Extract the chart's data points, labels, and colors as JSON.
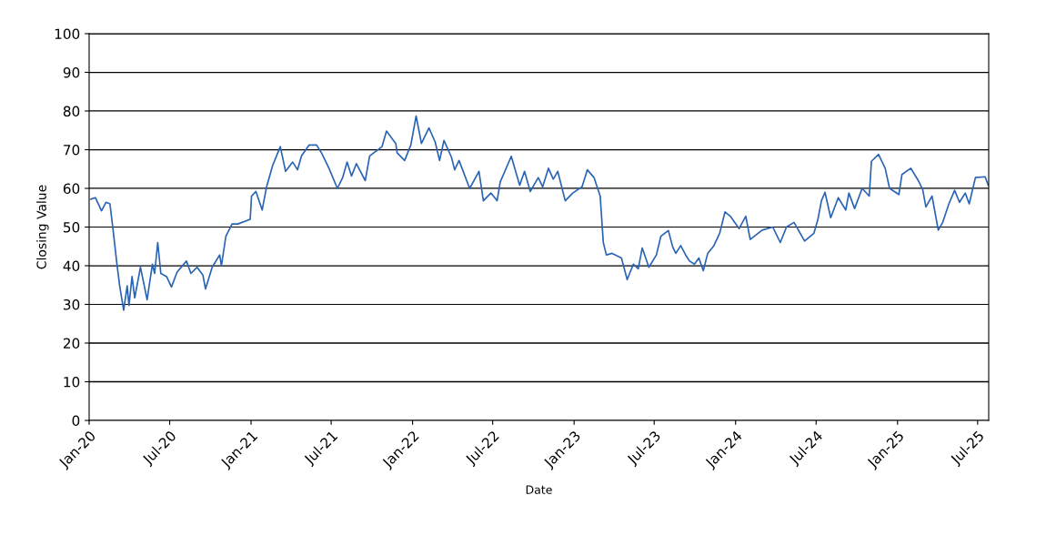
{
  "chart_data": {
    "type": "line",
    "xlabel": "Date",
    "ylabel": "Closing Value",
    "xlim": [
      "2020-01-01",
      "2025-07-26"
    ],
    "xticks": [
      {
        "value": "2020-01-01",
        "label": "Jan-20"
      },
      {
        "value": "2020-07-01",
        "label": "Jul-20"
      },
      {
        "value": "2021-01-01",
        "label": "Jan-21"
      },
      {
        "value": "2021-07-01",
        "label": "Jul-21"
      },
      {
        "value": "2022-01-01",
        "label": "Jan-22"
      },
      {
        "value": "2022-07-01",
        "label": "Jul-22"
      },
      {
        "value": "2023-01-01",
        "label": "Jan-23"
      },
      {
        "value": "2023-07-01",
        "label": "Jul-23"
      },
      {
        "value": "2024-01-01",
        "label": "Jan-24"
      },
      {
        "value": "2024-07-01",
        "label": "Jul-24"
      },
      {
        "value": "2025-01-01",
        "label": "Jan-25"
      },
      {
        "value": "2025-07-01",
        "label": "Jul-25"
      }
    ],
    "ylim": [
      0,
      100
    ],
    "yticks": [
      0,
      10,
      20,
      30,
      40,
      50,
      60,
      70,
      80,
      90,
      100
    ],
    "grid": "y",
    "x": [
      "2020-01-05",
      "2020-01-15",
      "2020-01-29",
      "2020-02-08",
      "2020-02-17",
      "2020-02-25",
      "2020-03-03",
      "2020-03-10",
      "2020-03-19",
      "2020-03-27",
      "2020-03-31",
      "2020-04-07",
      "2020-04-13",
      "2020-04-26",
      "2020-05-11",
      "2020-05-23",
      "2020-05-28",
      "2020-06-04",
      "2020-06-11",
      "2020-06-24",
      "2020-07-05",
      "2020-07-18",
      "2020-08-08",
      "2020-08-18",
      "2020-09-01",
      "2020-09-14",
      "2020-09-20",
      "2020-10-05",
      "2020-10-22",
      "2020-10-26",
      "2020-11-05",
      "2020-11-19",
      "2020-12-02",
      "2020-12-30",
      "2021-01-02",
      "2021-01-12",
      "2021-01-26",
      "2021-02-05",
      "2021-02-19",
      "2021-03-08",
      "2021-03-20",
      "2021-04-05",
      "2021-04-16",
      "2021-04-25",
      "2021-05-12",
      "2021-05-29",
      "2021-06-09",
      "2021-06-26",
      "2021-07-15",
      "2021-07-27",
      "2021-08-06",
      "2021-08-16",
      "2021-08-27",
      "2021-09-16",
      "2021-09-26",
      "2021-10-24",
      "2021-11-03",
      "2021-11-24",
      "2021-11-27",
      "2021-12-14",
      "2021-12-28",
      "2022-01-09",
      "2022-01-21",
      "2022-02-07",
      "2022-02-21",
      "2022-03-03",
      "2022-03-13",
      "2022-03-30",
      "2022-04-06",
      "2022-04-16",
      "2022-05-10",
      "2022-05-31",
      "2022-06-10",
      "2022-06-27",
      "2022-07-11",
      "2022-07-18",
      "2022-08-12",
      "2022-08-31",
      "2022-09-11",
      "2022-09-24",
      "2022-10-12",
      "2022-10-22",
      "2022-11-04",
      "2022-11-15",
      "2022-11-25",
      "2022-12-12",
      "2022-12-29",
      "2023-01-19",
      "2023-01-31",
      "2023-02-15",
      "2023-03-01",
      "2023-03-08",
      "2023-03-15",
      "2023-03-28",
      "2023-04-18",
      "2023-05-01",
      "2023-05-15",
      "2023-05-26",
      "2023-06-04",
      "2023-06-19",
      "2023-07-06",
      "2023-07-16",
      "2023-08-02",
      "2023-08-12",
      "2023-08-19",
      "2023-08-30",
      "2023-09-12",
      "2023-09-19",
      "2023-09-30",
      "2023-10-10",
      "2023-10-20",
      "2023-10-30",
      "2023-11-13",
      "2023-11-26",
      "2023-12-08",
      "2023-12-20",
      "2024-01-09",
      "2024-01-24",
      "2024-02-03",
      "2024-03-01",
      "2024-03-25",
      "2024-04-11",
      "2024-04-25",
      "2024-05-12",
      "2024-06-05",
      "2024-06-26",
      "2024-07-05",
      "2024-07-13",
      "2024-07-21",
      "2024-08-03",
      "2024-08-20",
      "2024-09-06",
      "2024-09-13",
      "2024-09-26",
      "2024-10-13",
      "2024-10-29",
      "2024-11-03",
      "2024-11-19",
      "2024-12-04",
      "2024-12-14",
      "2025-01-04",
      "2025-01-11",
      "2025-01-31",
      "2025-02-17",
      "2025-02-27",
      "2025-03-06",
      "2025-03-20",
      "2025-04-03",
      "2025-04-13",
      "2025-04-27",
      "2025-05-10",
      "2025-05-21",
      "2025-06-03",
      "2025-06-12",
      "2025-06-26",
      "2025-07-18",
      "2025-07-25"
    ],
    "series": [
      {
        "color": "#2a64b4",
        "values": [
          57.2,
          57.6,
          54.2,
          56.4,
          56.0,
          48.4,
          41.2,
          34.8,
          28.5,
          34.8,
          29.7,
          37.2,
          31.7,
          39.6,
          31.2,
          40.4,
          38.0,
          46.0,
          38.0,
          37.2,
          34.5,
          38.4,
          41.2,
          38.0,
          39.6,
          37.6,
          34.0,
          39.6,
          42.8,
          40.0,
          47.6,
          50.8,
          50.8,
          52.0,
          58.0,
          59.2,
          54.4,
          60.4,
          66.0,
          70.8,
          64.4,
          66.8,
          64.8,
          68.4,
          71.2,
          71.2,
          69.2,
          65.2,
          60.0,
          62.8,
          66.8,
          63.2,
          66.4,
          62.0,
          68.4,
          70.8,
          74.8,
          71.6,
          69.2,
          67.2,
          71.2,
          78.7,
          71.6,
          75.6,
          72.0,
          67.2,
          72.4,
          68.0,
          64.8,
          67.2,
          60.0,
          64.4,
          56.8,
          58.8,
          56.8,
          61.6,
          68.3,
          60.8,
          64.4,
          59.2,
          62.8,
          60.4,
          65.2,
          62.4,
          64.4,
          56.8,
          58.8,
          60.4,
          64.8,
          62.8,
          58.0,
          46.0,
          42.8,
          43.2,
          42.0,
          36.4,
          40.4,
          39.2,
          44.6,
          39.6,
          42.8,
          47.6,
          49.1,
          44.8,
          43.2,
          45.2,
          42.4,
          41.2,
          40.4,
          42.0,
          38.7,
          43.2,
          45.2,
          48.4,
          53.9,
          52.8,
          49.6,
          52.8,
          46.8,
          49.2,
          50.0,
          46.0,
          50.0,
          51.2,
          46.4,
          48.4,
          52.0,
          56.8,
          59.0,
          52.4,
          57.6,
          54.4,
          58.8,
          54.8,
          60.0,
          58.0,
          67.0,
          68.8,
          65.2,
          60.0,
          58.4,
          63.6,
          65.2,
          62.0,
          59.6,
          55.2,
          58.0,
          49.2,
          51.2,
          56.0,
          59.5,
          56.4,
          58.8,
          56.0,
          62.8,
          63.0,
          60.8
        ]
      }
    ]
  }
}
